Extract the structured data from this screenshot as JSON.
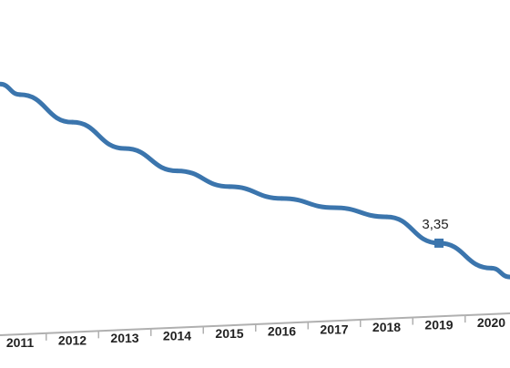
{
  "chart_data": {
    "type": "line",
    "title": "",
    "xlabel": "",
    "ylabel": "",
    "categories": [
      "2011",
      "2012",
      "2013",
      "2014",
      "2015",
      "2016",
      "2017",
      "2018",
      "2019",
      "2020"
    ],
    "series": [
      {
        "values": [
          4.48,
          4.27,
          4.07,
          3.9,
          3.78,
          3.69,
          3.62,
          3.55,
          3.35,
          3.16
        ],
        "color": "#3b75ad"
      }
    ],
    "annotations": [
      {
        "category": "2019",
        "label": "3,35"
      }
    ],
    "ylim": [
      2.4,
      5.2
    ],
    "grid": false,
    "legend": "none"
  }
}
